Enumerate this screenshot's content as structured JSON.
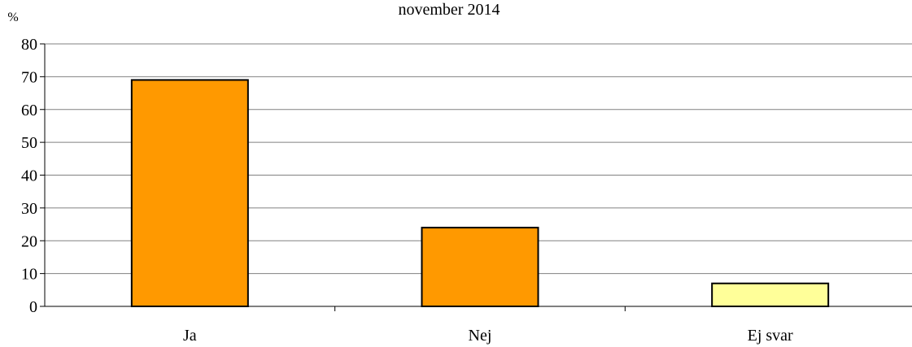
{
  "chart_data": {
    "type": "bar",
    "title": "november 2014",
    "ylabel": "%",
    "xlabel": "",
    "categories": [
      "Ja",
      "Nej",
      "Ej svar"
    ],
    "values": [
      69,
      24,
      7
    ],
    "ylim": [
      0,
      80
    ],
    "yticks": [
      0,
      10,
      20,
      30,
      40,
      50,
      60,
      70,
      80
    ],
    "grid": true,
    "legend": "none",
    "colors": [
      "#FF9900",
      "#FF9900",
      "#FFFF99"
    ],
    "bar_outline": "#000000"
  }
}
